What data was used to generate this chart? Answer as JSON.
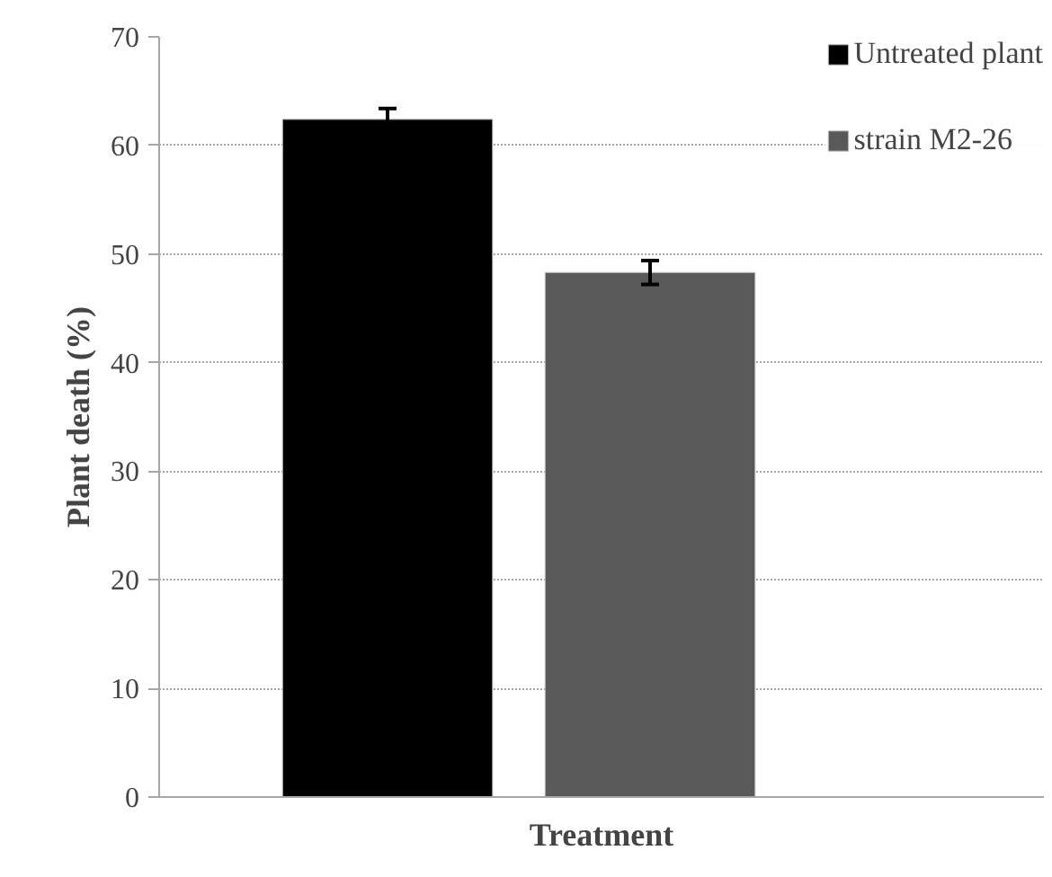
{
  "chart_data": {
    "type": "bar",
    "xlabel": "Treatment",
    "ylabel": "Plant death (%)",
    "categories": [
      null,
      null
    ],
    "series": [
      {
        "name": "Untreated plant",
        "color": "#000000",
        "values": [
          62.4,
          null
        ],
        "errors": [
          1.0,
          null
        ]
      },
      {
        "name": "strain M2-26",
        "color": "#595959",
        "values": [
          null,
          48.3
        ],
        "errors": [
          null,
          1.1
        ]
      }
    ],
    "ylim": [
      0,
      70
    ],
    "yticks": [
      0,
      10,
      20,
      30,
      40,
      50,
      60,
      70
    ],
    "grid": "y",
    "legend": "top right"
  }
}
